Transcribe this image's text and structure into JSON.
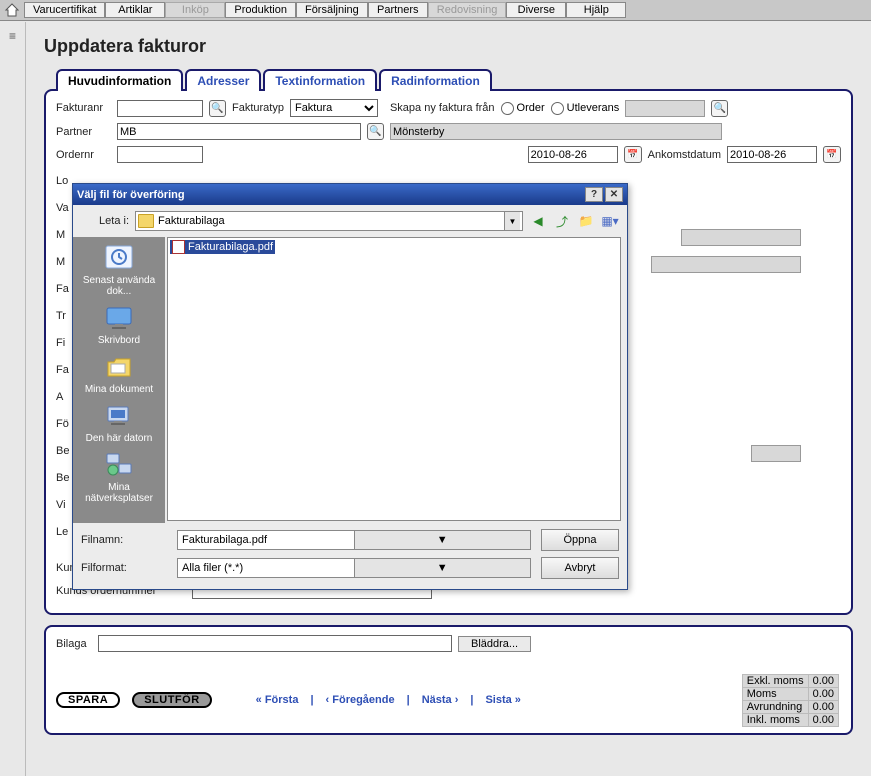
{
  "menu": {
    "items": [
      {
        "label": "Varucertifikat",
        "disabled": false
      },
      {
        "label": "Artiklar",
        "disabled": false
      },
      {
        "label": "Inköp",
        "disabled": true
      },
      {
        "label": "Produktion",
        "disabled": false
      },
      {
        "label": "Försäljning",
        "disabled": false
      },
      {
        "label": "Partners",
        "disabled": false
      },
      {
        "label": "Redovisning",
        "disabled": true
      },
      {
        "label": "Diverse",
        "disabled": false
      },
      {
        "label": "Hjälp",
        "disabled": false
      }
    ]
  },
  "page": {
    "title": "Uppdatera fakturor"
  },
  "tabs": [
    {
      "label": "Huvudinformation",
      "active": true
    },
    {
      "label": "Adresser",
      "active": false
    },
    {
      "label": "Textinformation",
      "active": false
    },
    {
      "label": "Radinformation",
      "active": false
    }
  ],
  "form": {
    "fakturanr_label": "Fakturanr",
    "fakturanr": "",
    "fakturatyp_label": "Fakturatyp",
    "fakturatyp": "Faktura",
    "skapa_label": "Skapa ny faktura från",
    "opt_order": "Order",
    "opt_utlev": "Utleverans",
    "partner_label": "Partner",
    "partner_code": "MB",
    "partner_name": "Mönsterby",
    "ordernr_label": "Ordernr",
    "date_mid": "2010-08-26",
    "ankomst_label": "Ankomstdatum",
    "ankomst": "2010-08-26",
    "kostnadsstalle_label": "Kunds kostnadsställe",
    "kostnadsstalle": "",
    "ordernummer_label": "Kunds ordernummer",
    "ordernummer": "",
    "side_labels": [
      "Lo",
      "Va",
      "M",
      "M",
      "Fa",
      "Tr",
      "Fi",
      "Fa",
      "A",
      "Fö",
      "Be",
      "Be",
      "Vi",
      "Le"
    ]
  },
  "bottom": {
    "bilaga_label": "Bilaga",
    "bilaga": "",
    "browse": "Bläddra...",
    "spara": "SPARA",
    "slutfor": "SLUTFÖR",
    "nav_first": "« Första",
    "nav_prev": "‹ Föregående",
    "nav_next": "Nästa ›",
    "nav_last": "Sista »",
    "totals": [
      {
        "label": "Exkl. moms",
        "value": "0.00"
      },
      {
        "label": "Moms",
        "value": "0.00"
      },
      {
        "label": "Avrundning",
        "value": "0.00"
      },
      {
        "label": "Inkl. moms",
        "value": "0.00"
      }
    ]
  },
  "dialog": {
    "title": "Välj fil för överföring",
    "lookin_label": "Leta i:",
    "lookin_value": "Fakturabilaga",
    "places": [
      {
        "label": "Senast använda dok...",
        "icon": "recent"
      },
      {
        "label": "Skrivbord",
        "icon": "desktop"
      },
      {
        "label": "Mina dokument",
        "icon": "mydocs"
      },
      {
        "label": "Den här datorn",
        "icon": "computer"
      },
      {
        "label": "Mina nätverksplatser",
        "icon": "network"
      }
    ],
    "file_selected": "Fakturabilaga.pdf",
    "filename_label": "Filnamn:",
    "filename": "Fakturabilaga.pdf",
    "filter_label": "Filformat:",
    "filter": "Alla filer (*.*)",
    "open": "Öppna",
    "cancel": "Avbryt"
  },
  "colors": {
    "panel_border": "#1a1a6a",
    "link": "#2e4fb5",
    "titlebar_top": "#3a6ac8",
    "titlebar_bottom": "#1a3a8a",
    "places_bg": "#8a8a8a"
  }
}
